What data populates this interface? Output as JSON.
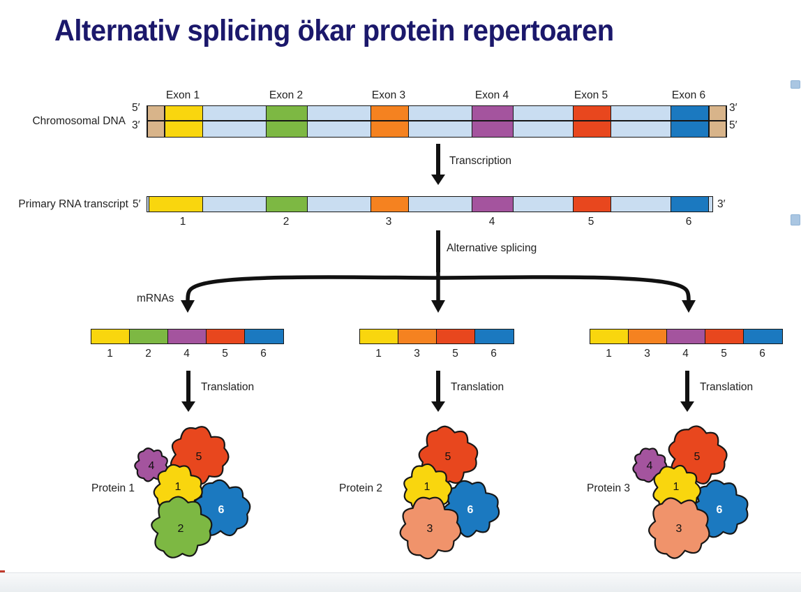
{
  "title": "Alternativ splicing ökar protein repertoaren",
  "palette": {
    "yellow": "#F9D60E",
    "green": "#7DB843",
    "orange": "#F58220",
    "purple": "#A4549E",
    "red": "#E8471E",
    "blue": "#1B79C0",
    "intron": "#C9DDF1",
    "tan": "#D8B48A",
    "salmon": "#F0936B",
    "outline": "#161616"
  },
  "labels": {
    "transcription": "Transcription",
    "alternative_splicing": "Alternative splicing",
    "translation": "Translation",
    "mrnas": "mRNAs"
  },
  "dna": {
    "label": "Chromosomal DNA",
    "five_prime_left": "5′",
    "three_prime_left": "3′",
    "three_prime_right": "3′",
    "five_prime_right": "5′",
    "exons": [
      {
        "label": "Exon 1",
        "color": "yellow"
      },
      {
        "label": "Exon 2",
        "color": "green"
      },
      {
        "label": "Exon 3",
        "color": "orange"
      },
      {
        "label": "Exon 4",
        "color": "purple"
      },
      {
        "label": "Exon 5",
        "color": "red"
      },
      {
        "label": "Exon 6",
        "color": "blue"
      }
    ]
  },
  "rna": {
    "label": "Primary RNA transcript",
    "five_prime": "5′",
    "three_prime": "3′",
    "exon_numbers": [
      "1",
      "2",
      "3",
      "4",
      "5",
      "6"
    ]
  },
  "mrnas": {
    "label": "mRNAs",
    "items": [
      {
        "exons": [
          {
            "num": "1",
            "color": "yellow"
          },
          {
            "num": "2",
            "color": "green"
          },
          {
            "num": "4",
            "color": "purple"
          },
          {
            "num": "5",
            "color": "red"
          },
          {
            "num": "6",
            "color": "blue"
          }
        ]
      },
      {
        "exons": [
          {
            "num": "1",
            "color": "yellow"
          },
          {
            "num": "3",
            "color": "orange"
          },
          {
            "num": "5",
            "color": "red"
          },
          {
            "num": "6",
            "color": "blue"
          }
        ]
      },
      {
        "exons": [
          {
            "num": "1",
            "color": "yellow"
          },
          {
            "num": "3",
            "color": "orange"
          },
          {
            "num": "4",
            "color": "purple"
          },
          {
            "num": "5",
            "color": "red"
          },
          {
            "num": "6",
            "color": "blue"
          }
        ]
      }
    ]
  },
  "proteins": [
    {
      "label": "Protein 1",
      "subunits": [
        {
          "num": "4",
          "color": "purple",
          "slot": "accent"
        },
        {
          "num": "6",
          "color": "blue",
          "slot": "right"
        },
        {
          "num": "5",
          "color": "red",
          "slot": "top"
        },
        {
          "num": "1",
          "color": "yellow",
          "slot": "center"
        },
        {
          "num": "2",
          "color": "green",
          "slot": "bottom"
        }
      ]
    },
    {
      "label": "Protein 2",
      "subunits": [
        {
          "num": "6",
          "color": "blue",
          "slot": "right"
        },
        {
          "num": "5",
          "color": "red",
          "slot": "top"
        },
        {
          "num": "1",
          "color": "yellow",
          "slot": "center"
        },
        {
          "num": "3",
          "color": "salmon",
          "slot": "bottom"
        }
      ]
    },
    {
      "label": "Protein 3",
      "subunits": [
        {
          "num": "4",
          "color": "purple",
          "slot": "accent"
        },
        {
          "num": "6",
          "color": "blue",
          "slot": "right"
        },
        {
          "num": "5",
          "color": "red",
          "slot": "top"
        },
        {
          "num": "1",
          "color": "yellow",
          "slot": "center"
        },
        {
          "num": "3",
          "color": "salmon",
          "slot": "bottom"
        }
      ]
    }
  ]
}
